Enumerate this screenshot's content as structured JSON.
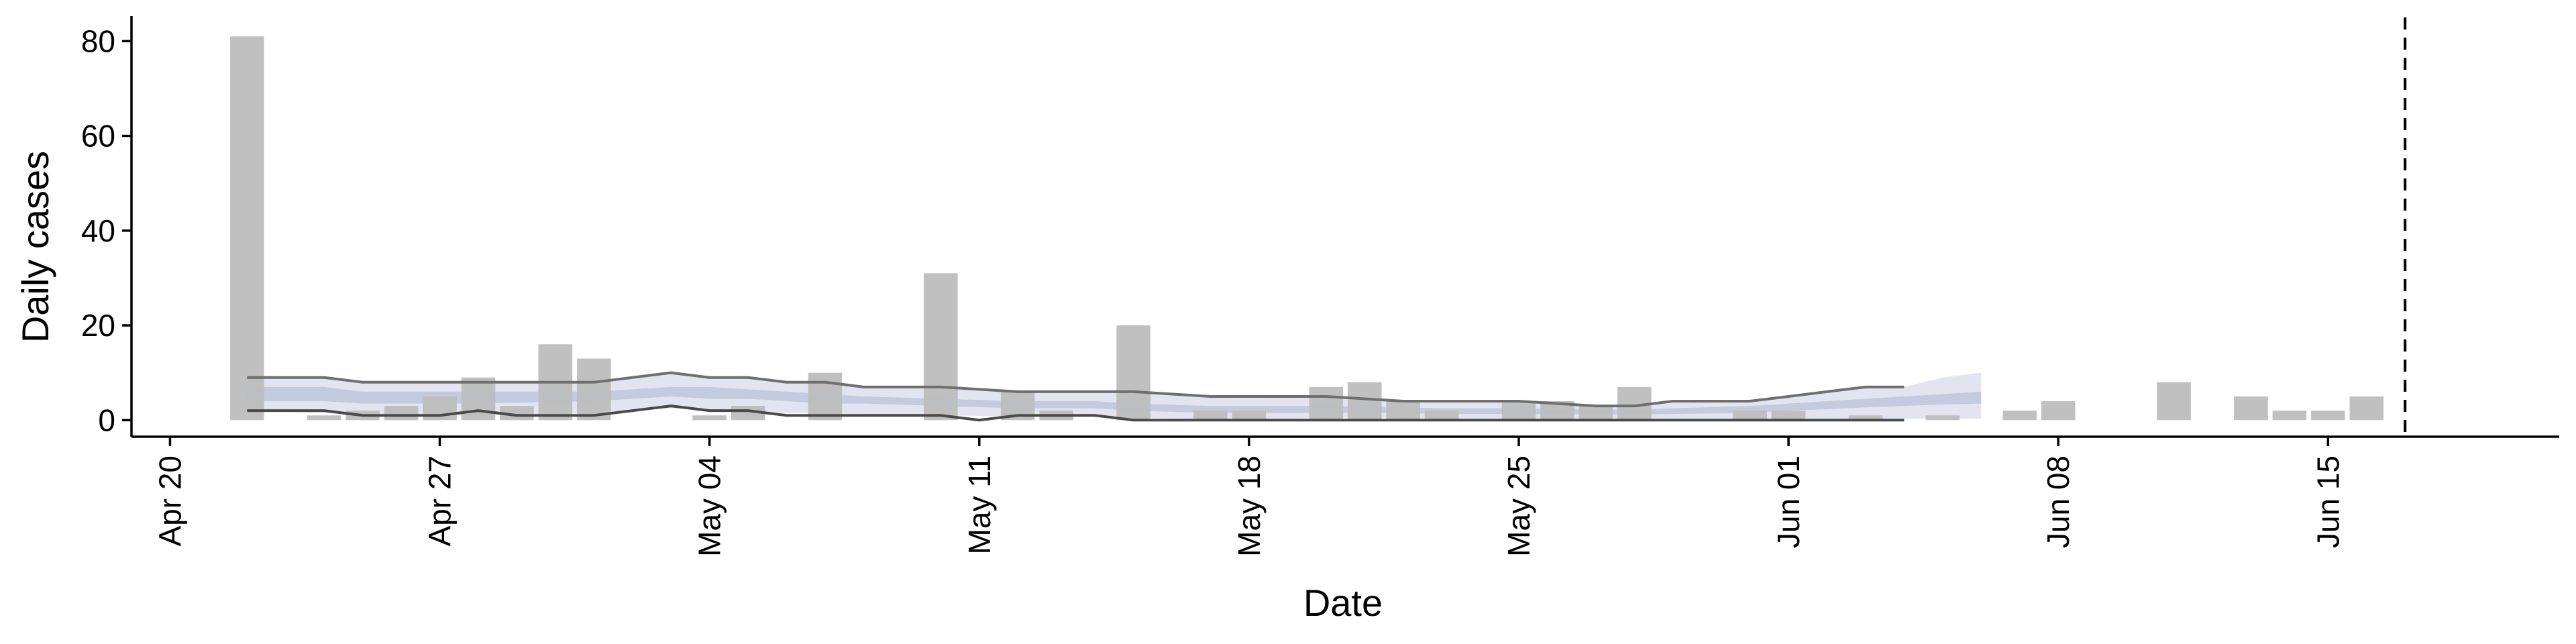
{
  "chart_data": {
    "type": "bar",
    "xlabel": "Date",
    "ylabel": "Daily cases",
    "x_axis": "date",
    "xlim": [
      "2020-04-19",
      "2020-06-21"
    ],
    "ylim": [
      -3.5,
      85
    ],
    "grid": false,
    "y_ticks": [
      0,
      20,
      40,
      60,
      80
    ],
    "x_ticks": [
      {
        "date": "2020-04-20",
        "label": "Apr 20"
      },
      {
        "date": "2020-04-27",
        "label": "Apr 27"
      },
      {
        "date": "2020-05-04",
        "label": "May 04"
      },
      {
        "date": "2020-05-11",
        "label": "May 11"
      },
      {
        "date": "2020-05-18",
        "label": "May 18"
      },
      {
        "date": "2020-05-25",
        "label": "May 25"
      },
      {
        "date": "2020-06-01",
        "label": "Jun 01"
      },
      {
        "date": "2020-06-08",
        "label": "Jun 08"
      },
      {
        "date": "2020-06-15",
        "label": "Jun 15"
      }
    ],
    "bars": {
      "color": "#bdbdbd",
      "points": [
        {
          "date": "2020-04-22",
          "value": 81
        },
        {
          "date": "2020-04-24",
          "value": 1
        },
        {
          "date": "2020-04-25",
          "value": 2
        },
        {
          "date": "2020-04-26",
          "value": 3
        },
        {
          "date": "2020-04-27",
          "value": 5
        },
        {
          "date": "2020-04-28",
          "value": 9
        },
        {
          "date": "2020-04-29",
          "value": 3
        },
        {
          "date": "2020-04-30",
          "value": 16
        },
        {
          "date": "2020-05-01",
          "value": 13
        },
        {
          "date": "2020-05-04",
          "value": 1
        },
        {
          "date": "2020-05-05",
          "value": 3
        },
        {
          "date": "2020-05-07",
          "value": 10
        },
        {
          "date": "2020-05-10",
          "value": 31
        },
        {
          "date": "2020-05-12",
          "value": 6
        },
        {
          "date": "2020-05-13",
          "value": 2
        },
        {
          "date": "2020-05-15",
          "value": 20
        },
        {
          "date": "2020-05-17",
          "value": 2
        },
        {
          "date": "2020-05-18",
          "value": 2
        },
        {
          "date": "2020-05-20",
          "value": 7
        },
        {
          "date": "2020-05-21",
          "value": 8
        },
        {
          "date": "2020-05-22",
          "value": 4
        },
        {
          "date": "2020-05-23",
          "value": 2
        },
        {
          "date": "2020-05-25",
          "value": 4
        },
        {
          "date": "2020-05-26",
          "value": 4
        },
        {
          "date": "2020-05-27",
          "value": 3
        },
        {
          "date": "2020-05-28",
          "value": 7
        },
        {
          "date": "2020-05-31",
          "value": 2
        },
        {
          "date": "2020-06-01",
          "value": 2
        },
        {
          "date": "2020-06-03",
          "value": 1
        },
        {
          "date": "2020-06-05",
          "value": 1
        },
        {
          "date": "2020-06-07",
          "value": 2
        },
        {
          "date": "2020-06-08",
          "value": 4
        },
        {
          "date": "2020-06-11",
          "value": 8
        },
        {
          "date": "2020-06-13",
          "value": 5
        },
        {
          "date": "2020-06-14",
          "value": 2
        },
        {
          "date": "2020-06-15",
          "value": 2
        },
        {
          "date": "2020-06-16",
          "value": 5
        }
      ]
    },
    "ribbons": [
      {
        "color": "#dde1ec",
        "opacity": 0.85,
        "x": [
          "2020-04-22",
          "2020-04-24",
          "2020-04-25",
          "2020-04-28",
          "2020-05-01",
          "2020-05-03",
          "2020-05-04",
          "2020-05-05",
          "2020-05-06",
          "2020-05-07",
          "2020-05-08",
          "2020-05-10",
          "2020-05-12",
          "2020-05-14",
          "2020-05-15",
          "2020-05-17",
          "2020-05-19",
          "2020-05-20",
          "2020-05-22",
          "2020-05-23",
          "2020-05-25",
          "2020-05-27",
          "2020-05-28",
          "2020-05-29",
          "2020-05-31",
          "2020-06-01",
          "2020-06-02",
          "2020-06-03",
          "2020-06-04",
          "2020-06-05",
          "2020-06-06"
        ],
        "lower": [
          2,
          1.5,
          1,
          1,
          1.5,
          2.5,
          2,
          2,
          1.5,
          1.5,
          1.2,
          1,
          0.8,
          0.8,
          0.5,
          0.3,
          0.3,
          0.5,
          0.5,
          0.3,
          0.3,
          0.3,
          0.3,
          0.3,
          0.3,
          0.3,
          0.3,
          0.3,
          0.3,
          0.3,
          0.3
        ],
        "upper": [
          9,
          9,
          8,
          8,
          8,
          10,
          9,
          9,
          8,
          8,
          7,
          7,
          6,
          6,
          6,
          5,
          5,
          5,
          4,
          4,
          4,
          3,
          3,
          4,
          4,
          5,
          6,
          7,
          7,
          9,
          10
        ]
      },
      {
        "color": "#bfc7da",
        "opacity": 0.85,
        "x": [
          "2020-04-22",
          "2020-04-24",
          "2020-04-25",
          "2020-04-28",
          "2020-05-01",
          "2020-05-03",
          "2020-05-04",
          "2020-05-05",
          "2020-05-06",
          "2020-05-07",
          "2020-05-08",
          "2020-05-10",
          "2020-05-12",
          "2020-05-14",
          "2020-05-15",
          "2020-05-17",
          "2020-05-19",
          "2020-05-20",
          "2020-05-22",
          "2020-05-23",
          "2020-05-25",
          "2020-05-27",
          "2020-05-28",
          "2020-05-29",
          "2020-05-31",
          "2020-06-01",
          "2020-06-02",
          "2020-06-03",
          "2020-06-04",
          "2020-06-05",
          "2020-06-06"
        ],
        "lower": [
          4,
          4,
          3.5,
          3.5,
          4,
          5,
          4.5,
          4.5,
          4,
          3.5,
          3.5,
          3,
          2.5,
          2.5,
          2,
          1.5,
          1.5,
          1.5,
          1.5,
          1.3,
          1.3,
          1.2,
          1.2,
          1.3,
          1.5,
          2,
          2.3,
          2.7,
          3,
          3.3,
          3.5
        ],
        "upper": [
          7,
          7,
          6,
          6,
          6,
          7,
          7,
          6.5,
          6,
          5.5,
          5,
          4.5,
          4,
          4,
          3.5,
          3,
          3,
          3,
          2.7,
          2.5,
          2.5,
          2.2,
          2.2,
          2.5,
          3,
          3.5,
          4,
          4.5,
          5,
          5.5,
          6
        ]
      }
    ],
    "lines": [
      {
        "color": "#6f6f6f",
        "x": [
          "2020-04-22",
          "2020-04-24",
          "2020-04-25",
          "2020-04-28",
          "2020-05-01",
          "2020-05-03",
          "2020-05-04",
          "2020-05-05",
          "2020-05-06",
          "2020-05-07",
          "2020-05-08",
          "2020-05-10",
          "2020-05-12",
          "2020-05-14",
          "2020-05-15",
          "2020-05-17",
          "2020-05-19",
          "2020-05-20",
          "2020-05-22",
          "2020-05-23",
          "2020-05-25",
          "2020-05-27",
          "2020-05-28",
          "2020-05-29",
          "2020-05-31",
          "2020-06-01",
          "2020-06-02",
          "2020-06-03",
          "2020-06-04"
        ],
        "y": [
          9,
          9,
          8,
          8,
          8,
          10,
          9,
          9,
          8,
          8,
          7,
          7,
          6,
          6,
          6,
          5,
          5,
          5,
          4,
          4,
          4,
          3,
          3,
          4,
          4,
          5,
          6,
          7,
          7
        ]
      },
      {
        "color": "#4a4a4a",
        "x": [
          "2020-04-22",
          "2020-04-24",
          "2020-04-25",
          "2020-04-26",
          "2020-04-27",
          "2020-04-28",
          "2020-04-29",
          "2020-04-30",
          "2020-05-01",
          "2020-05-03",
          "2020-05-04",
          "2020-05-05",
          "2020-05-06",
          "2020-05-07",
          "2020-05-08",
          "2020-05-10",
          "2020-05-11",
          "2020-05-12",
          "2020-05-14",
          "2020-05-15",
          "2020-05-17",
          "2020-05-19",
          "2020-05-20",
          "2020-05-22",
          "2020-05-23",
          "2020-05-25",
          "2020-05-27",
          "2020-05-28",
          "2020-05-29",
          "2020-05-31",
          "2020-06-01",
          "2020-06-02",
          "2020-06-03",
          "2020-06-04"
        ],
        "y": [
          2,
          2,
          1,
          1,
          1,
          2,
          1,
          1,
          1,
          3,
          2,
          2,
          1,
          1,
          1,
          1,
          0,
          1,
          1,
          0,
          0,
          0,
          0,
          0,
          0,
          0,
          0,
          0,
          0,
          0,
          0,
          0,
          0,
          0
        ]
      }
    ],
    "vline": {
      "date": "2020-06-17",
      "style": "dashed",
      "color": "#000000"
    }
  }
}
